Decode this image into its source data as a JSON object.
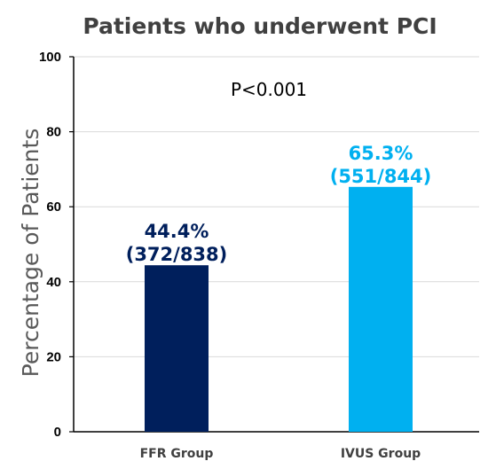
{
  "chart_data": {
    "type": "bar",
    "title": "Patients who underwent PCI",
    "ylabel": "Percentage of Patients",
    "xlabel": "",
    "ylim": [
      0,
      100
    ],
    "yticks": [
      0,
      20,
      40,
      60,
      80,
      100
    ],
    "grid": true,
    "categories": [
      "FFR Group",
      "IVUS Group"
    ],
    "values": [
      44.4,
      65.3
    ],
    "data_labels": [
      {
        "line1": "44.4%",
        "line2": "(372/838)"
      },
      {
        "line1": "65.3%",
        "line2": "(551/844)"
      }
    ],
    "colors": [
      "#001f5c",
      "#00b0f0"
    ],
    "annotation": "P<0.001"
  }
}
